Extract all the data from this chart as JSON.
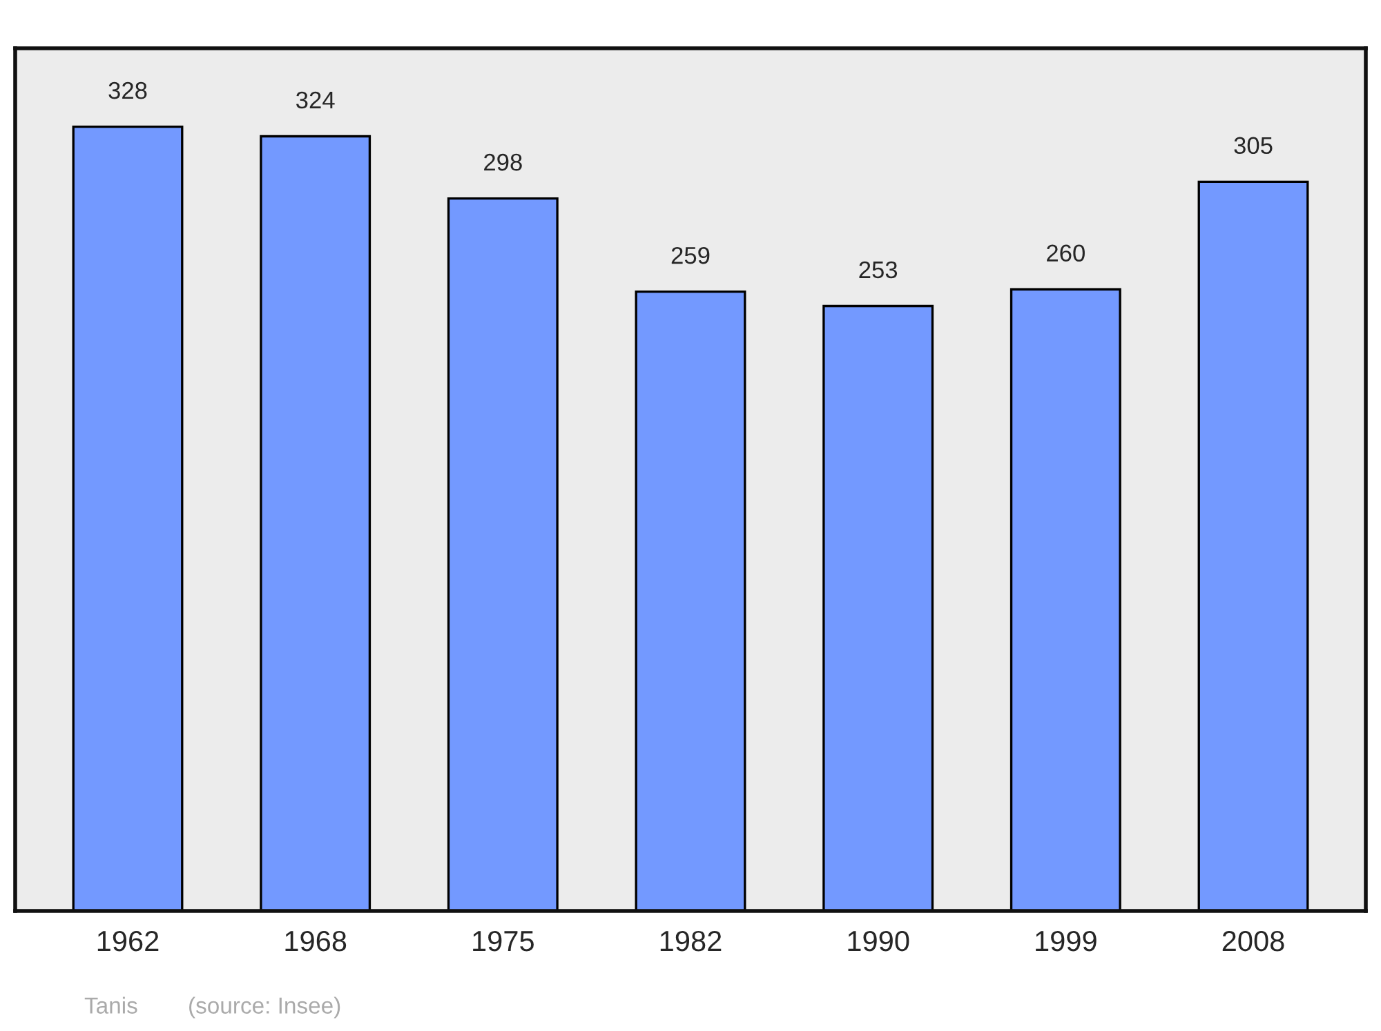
{
  "chart_data": {
    "type": "bar",
    "categories": [
      "1962",
      "1968",
      "1975",
      "1982",
      "1990",
      "1999",
      "2008"
    ],
    "values": [
      328,
      324,
      298,
      259,
      253,
      260,
      305
    ],
    "color": "#7399ff",
    "data_labels": true,
    "grid": false,
    "legend": false,
    "annotations": [
      "Tanis",
      "(source: Insee)"
    ]
  }
}
